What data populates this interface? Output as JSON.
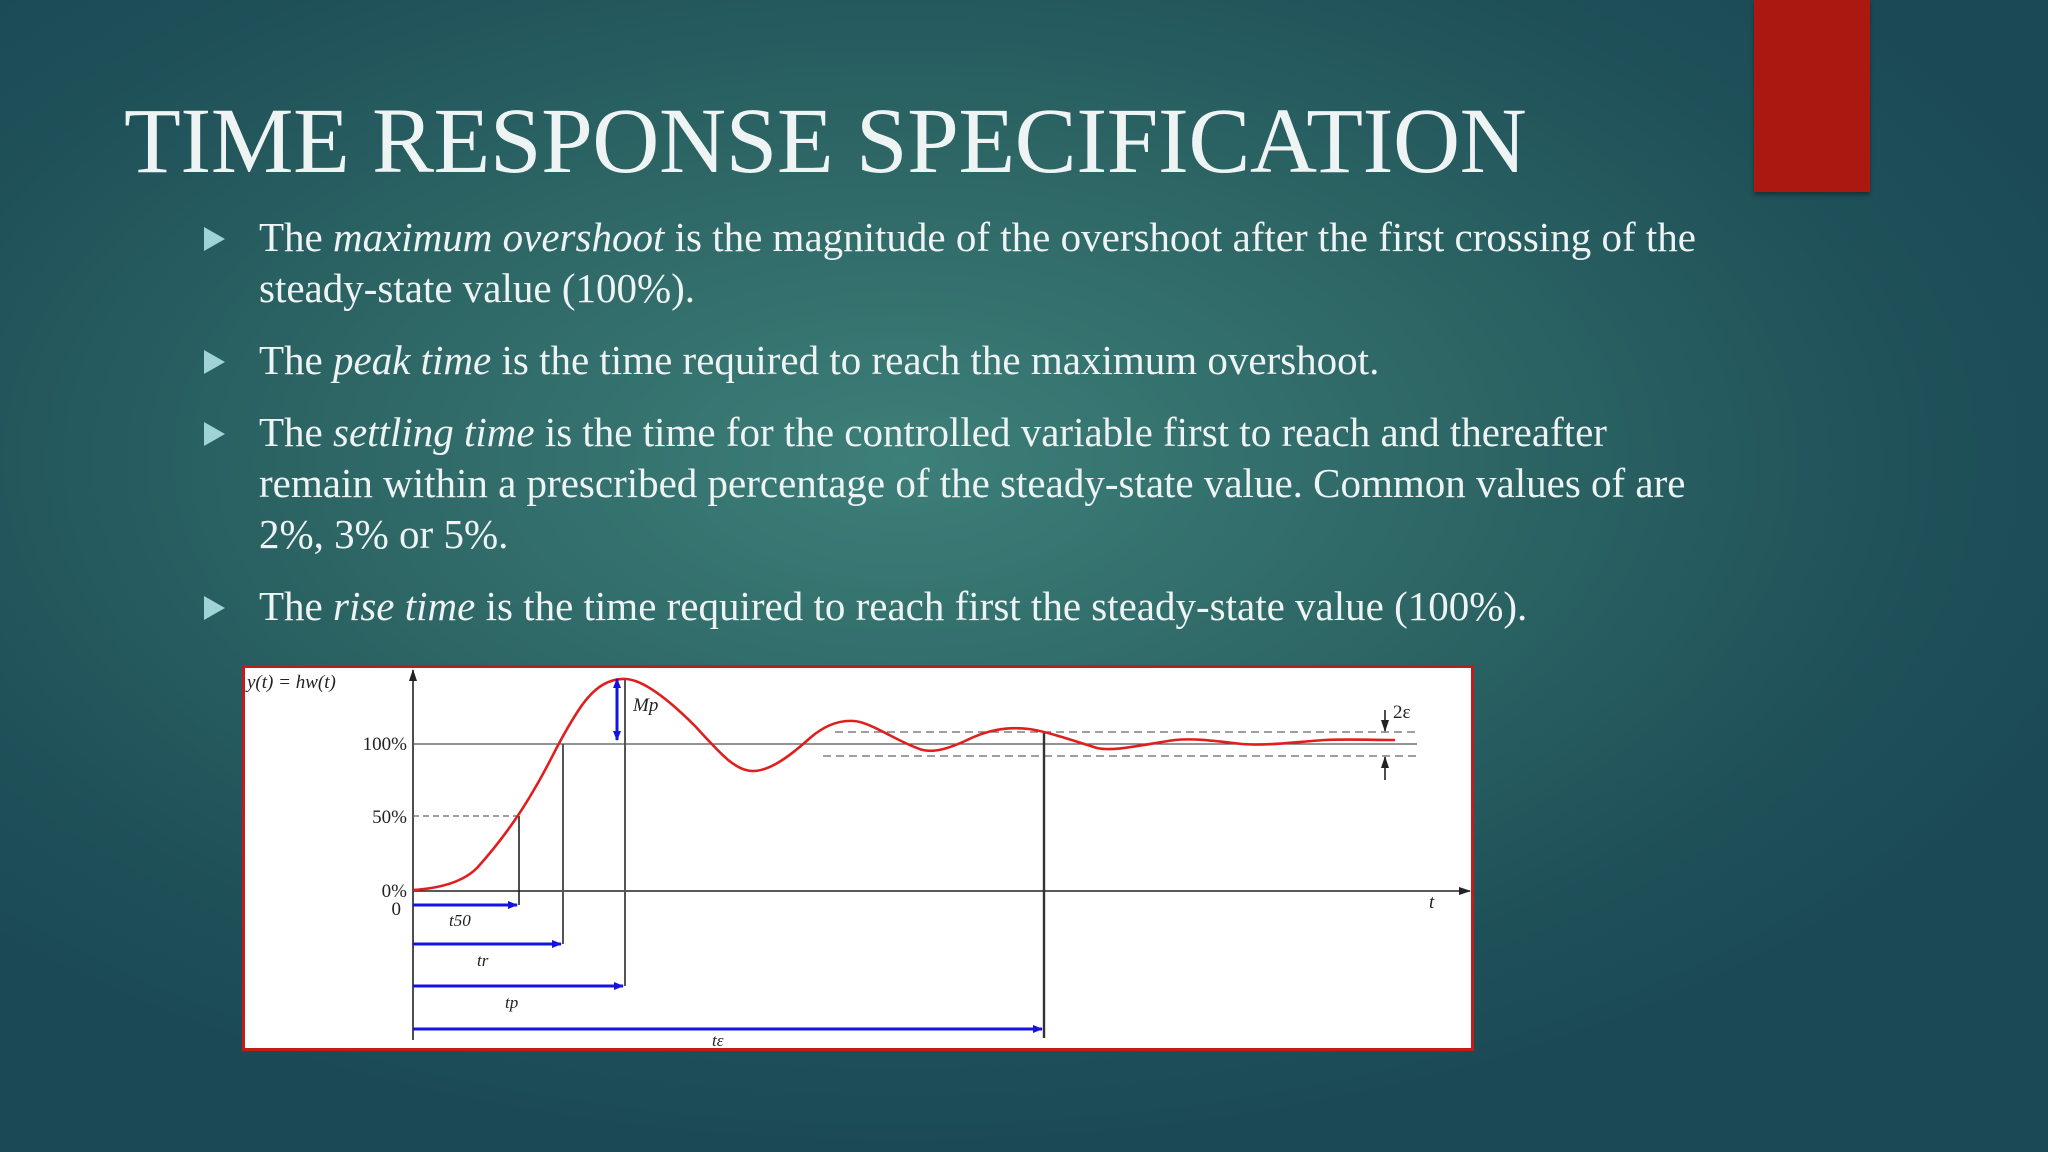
{
  "slide": {
    "title": "TIME RESPONSE SPECIFICATION",
    "bullets": [
      {
        "before": "The ",
        "term": "maximum overshoot",
        "after": "  is the magnitude of the overshoot after the first crossing of the steady-state value (100%)."
      },
      {
        "before": "The ",
        "term": "peak time",
        "after": "  is the time required to reach the maximum overshoot."
      },
      {
        "before": "The ",
        "term": "settling time",
        "after": "  is the time for the controlled variable first to reach and thereafter remain within a prescribed percentage  of the steady-state value. Common values of  are 2%, 3% or 5%."
      },
      {
        "before": "The ",
        "term": "rise time",
        "after": "  is the time required to reach first the steady-state value (100%)."
      }
    ],
    "accent_color": "#ab1711",
    "text_color": "#eef3f3",
    "bullet_color": "#9fd3d6"
  },
  "figure": {
    "y_axis_label": "y(t) = hw(t)",
    "y_labels": {
      "p100": "100%",
      "p50": "50%",
      "p0": "0%",
      "zero": "0"
    },
    "x_axis_label": "t",
    "band_label": "2ε",
    "overshoot_label": "Mp",
    "time_labels": {
      "t50": "t50",
      "tr": "tr",
      "tp": "tp",
      "te": "tε"
    },
    "colors": {
      "curve": "#e01e1e",
      "arrow": "#1414e0",
      "frame": "#c31a1a",
      "axis": "#222222"
    }
  }
}
